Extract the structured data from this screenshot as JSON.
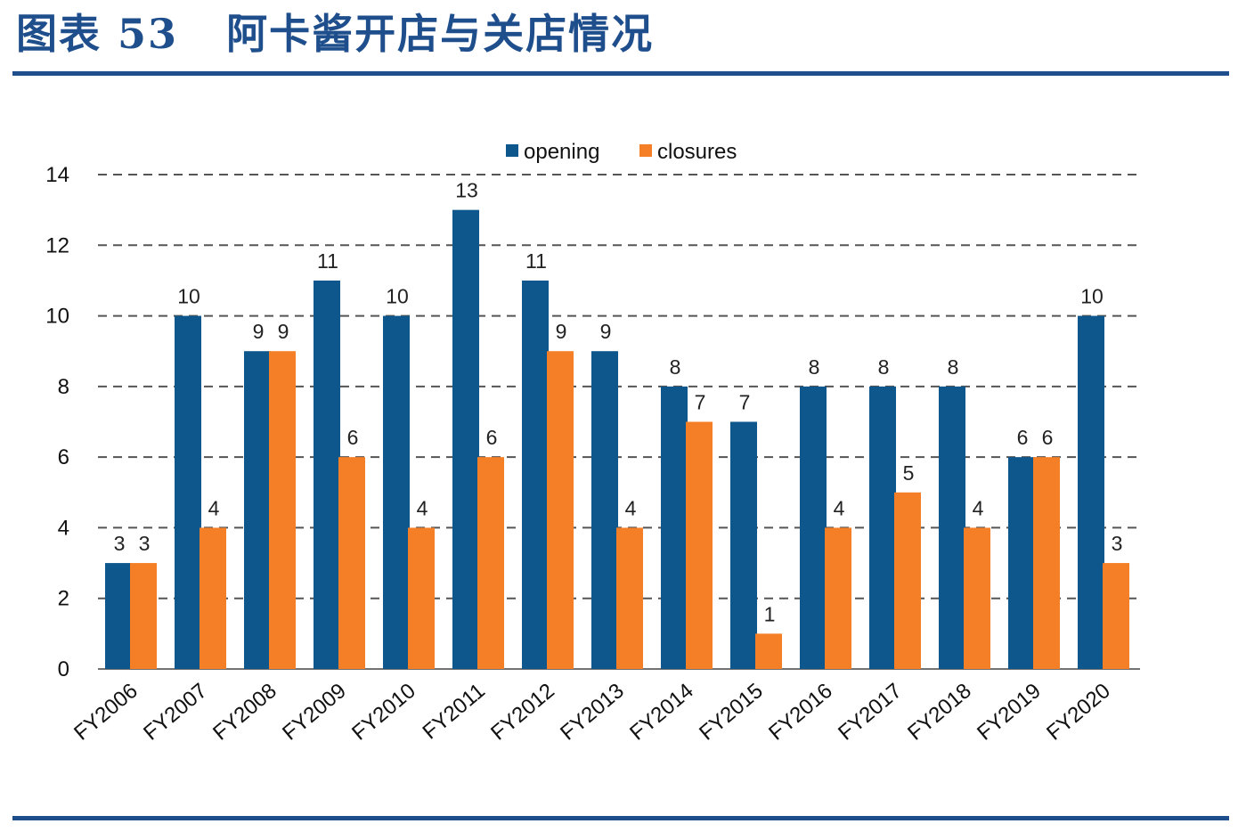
{
  "header": {
    "title": "图表 53   阿卡酱开店与关店情况"
  },
  "colors": {
    "brand": "#1f4e8c",
    "opening": "#0e578c",
    "closures": "#f47f26"
  },
  "chart_data": {
    "type": "bar",
    "title": "",
    "xlabel": "",
    "ylabel": "",
    "ylim": [
      0,
      14
    ],
    "yticks": [
      0,
      2,
      4,
      6,
      8,
      10,
      12,
      14
    ],
    "grid": true,
    "legend_position": "top",
    "categories": [
      "FY2006",
      "FY2007",
      "FY2008",
      "FY2009",
      "FY2010",
      "FY2011",
      "FY2012",
      "FY2013",
      "FY2014",
      "FY2015",
      "FY2016",
      "FY2017",
      "FY2018",
      "FY2019",
      "FY2020"
    ],
    "series": [
      {
        "name": "opening",
        "color": "#0e578c",
        "values": [
          3,
          10,
          9,
          11,
          10,
          13,
          11,
          9,
          8,
          7,
          8,
          8,
          8,
          6,
          10
        ]
      },
      {
        "name": "closures",
        "color": "#f47f26",
        "values": [
          3,
          4,
          9,
          6,
          4,
          6,
          9,
          4,
          7,
          1,
          4,
          5,
          4,
          6,
          3
        ]
      }
    ]
  }
}
